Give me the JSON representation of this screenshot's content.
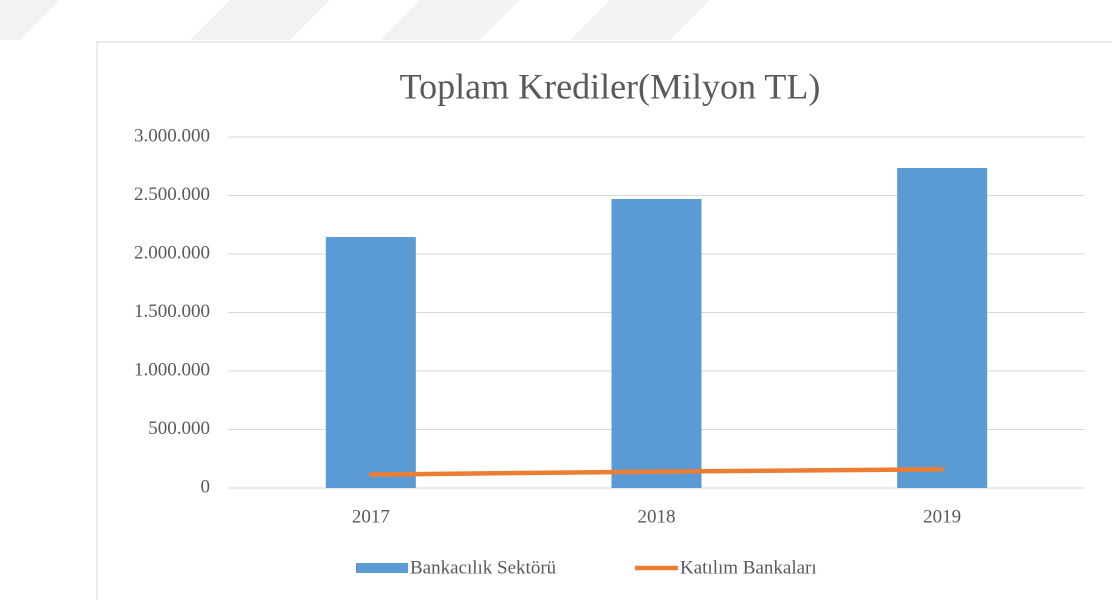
{
  "chart_data": {
    "type": "bar",
    "title": "Toplam Krediler(Milyon TL)",
    "categories": [
      "2017",
      "2018",
      "2019"
    ],
    "series": [
      {
        "name": "Bankacılık Sektörü",
        "type": "bar",
        "color": "#5b9bd5",
        "values": [
          2145000,
          2470000,
          2735000
        ]
      },
      {
        "name": "Katılım Bankaları",
        "type": "line",
        "color": "#ed7d31",
        "values": [
          115000,
          140000,
          160000
        ]
      }
    ],
    "ylim": [
      0,
      3000000
    ],
    "yticks": [
      0,
      {
        "value": 500000,
        "label": "500.000"
      },
      {
        "value": 1000000,
        "label": "1.000.000"
      },
      {
        "value": 1500000,
        "label": "1.500.000"
      },
      {
        "value": 2000000,
        "label": "2.000.000"
      },
      {
        "value": 2500000,
        "label": "2.500.000"
      },
      {
        "value": 3000000,
        "label": "3.000.000"
      }
    ],
    "grid": true,
    "legend": "bottom"
  }
}
